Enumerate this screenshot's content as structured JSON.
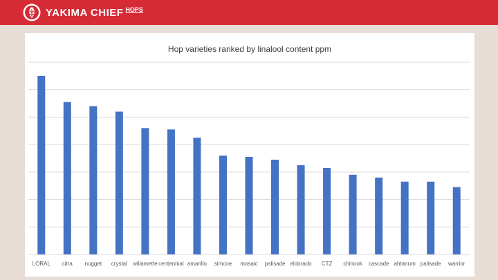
{
  "header": {
    "brand": "YAKIMA CHIEF",
    "brand_suffix": "HOPS",
    "brand_color": "#d62a35"
  },
  "chart_data": {
    "type": "bar",
    "title": "Hop varieties ranked by linalool content ppm",
    "xlabel": "",
    "ylabel": "",
    "ylim": [
      0,
      70
    ],
    "grid": true,
    "bar_color": "#4472c4",
    "categories": [
      "LORAL",
      "citra",
      "nugget",
      "crystal",
      "willamette",
      "centennial",
      "amarillo",
      "simcoe",
      "mosaic",
      "palisade",
      "eldorado",
      "CTZ",
      "chinook",
      "cascade",
      "ahtanum",
      "palisade",
      "warrior"
    ],
    "values": [
      65,
      55.5,
      54,
      52,
      46,
      45.5,
      42.5,
      36,
      35.5,
      34.5,
      32.5,
      31.5,
      29,
      28,
      26.5,
      26.5,
      24.5
    ]
  }
}
